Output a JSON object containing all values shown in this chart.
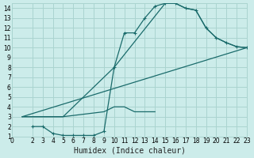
{
  "xlabel": "Humidex (Indice chaleur)",
  "bg_color": "#ccecea",
  "grid_color": "#aad4d0",
  "line_color": "#1a6b6b",
  "xlim": [
    0,
    23
  ],
  "ylim": [
    1,
    14.5
  ],
  "xticks": [
    0,
    2,
    3,
    4,
    5,
    6,
    7,
    8,
    9,
    10,
    11,
    12,
    13,
    14,
    15,
    16,
    17,
    18,
    19,
    20,
    21,
    22,
    23
  ],
  "yticks": [
    1,
    2,
    3,
    4,
    5,
    6,
    7,
    8,
    9,
    10,
    11,
    12,
    13,
    14
  ],
  "curve_markers": {
    "x": [
      2,
      3,
      4,
      5,
      6,
      7,
      8,
      9,
      10,
      11,
      12,
      13,
      14,
      15,
      16,
      17,
      18,
      19,
      20,
      21,
      22,
      23
    ],
    "y": [
      2,
      2,
      1.3,
      1.1,
      1.1,
      1.1,
      1.1,
      1.5,
      8,
      11.5,
      11.5,
      13,
      14.2,
      14.5,
      14.5,
      14.0,
      13.8,
      12.0,
      11.0,
      10.5,
      10.1,
      10.0
    ]
  },
  "curve_upper": {
    "x": [
      1,
      4,
      5,
      10,
      15,
      16,
      17,
      18,
      19,
      20,
      21,
      22,
      23
    ],
    "y": [
      3,
      3,
      3,
      8,
      14.5,
      14.5,
      14.0,
      13.8,
      12.0,
      11.0,
      10.5,
      10.1,
      10.0
    ]
  },
  "curve_diag": {
    "x": [
      1,
      23
    ],
    "y": [
      3,
      10
    ]
  },
  "curve_bottom": {
    "x": [
      1,
      4,
      5,
      9,
      10,
      11,
      12,
      13,
      14
    ],
    "y": [
      3,
      3,
      3,
      3.5,
      4,
      4,
      3.5,
      3.5,
      3.5
    ]
  }
}
